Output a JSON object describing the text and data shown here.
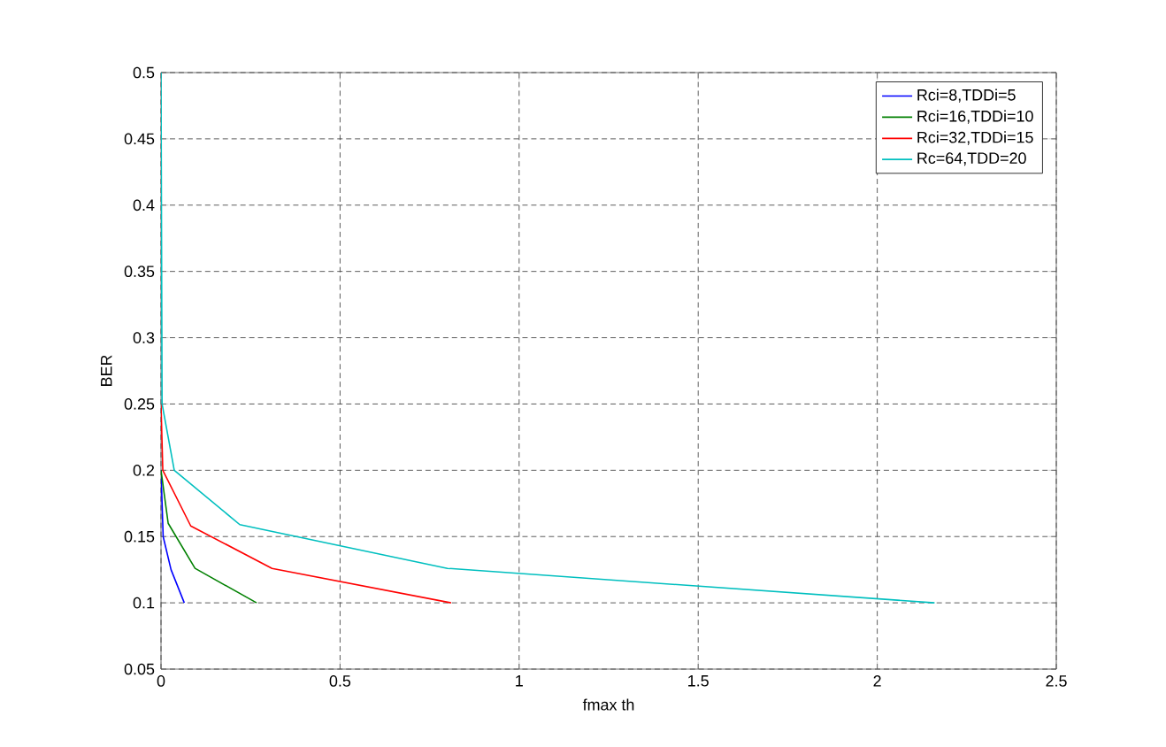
{
  "chart_data": {
    "type": "line",
    "xlabel": "fmax th",
    "ylabel": "BER",
    "xlim": [
      0,
      2.5
    ],
    "ylim": [
      0.05,
      0.5
    ],
    "xticks": [
      0,
      0.5,
      1,
      1.5,
      2,
      2.5
    ],
    "yticks": [
      0.05,
      0.1,
      0.15,
      0.2,
      0.25,
      0.3,
      0.35,
      0.4,
      0.45,
      0.5
    ],
    "grid": true,
    "legend": "top right",
    "line_style": "solid",
    "series": [
      {
        "name": "Rci=8,TDDi=5",
        "color": "#0000ff",
        "x": [
          0,
          0.006,
          0.028,
          0.065
        ],
        "values": [
          0.2,
          0.15,
          0.125,
          0.1
        ]
      },
      {
        "name": "Rci=16,TDDi=10",
        "color": "#008000",
        "x": [
          0,
          0.02,
          0.095,
          0.267
        ],
        "values": [
          0.2,
          0.16,
          0.126,
          0.1
        ]
      },
      {
        "name": "Rci=32,TDDi=15",
        "color": "#ff0000",
        "x": [
          0,
          0.005,
          0.083,
          0.31,
          0.81
        ],
        "values": [
          0.25,
          0.2,
          0.158,
          0.126,
          0.1
        ]
      },
      {
        "name": "Rc=64,TDD=20",
        "color": "#00bfbf",
        "x": [
          0,
          0.003,
          0.037,
          0.22,
          0.8,
          2.16
        ],
        "values": [
          0.5,
          0.25,
          0.2,
          0.159,
          0.126,
          0.1
        ]
      }
    ]
  }
}
